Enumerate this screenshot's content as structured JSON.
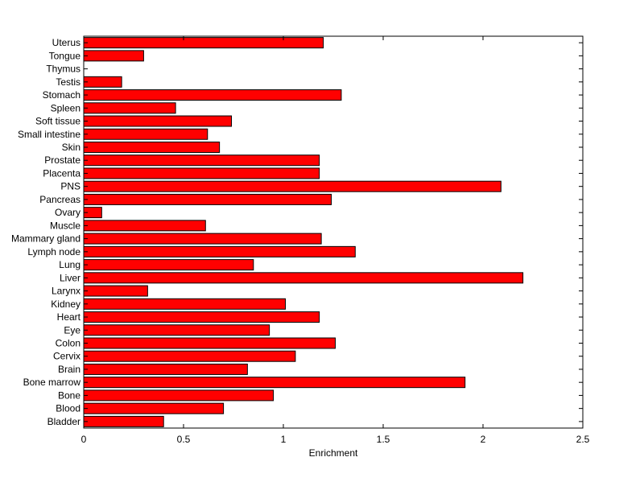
{
  "chart_data": {
    "type": "bar",
    "orientation": "horizontal",
    "xlabel": "Enrichment",
    "ylabel": "",
    "title": "",
    "xlim": [
      0,
      2.5
    ],
    "xticks": [
      "0",
      "0.5",
      "1",
      "1.5",
      "2",
      "2.5"
    ],
    "grid": false,
    "legend": "none",
    "bar_color": "#ff0000",
    "bar_edge_color": "#000000",
    "categories": [
      "Bladder",
      "Blood",
      "Bone",
      "Bone marrow",
      "Brain",
      "Cervix",
      "Colon",
      "Eye",
      "Heart",
      "Kidney",
      "Larynx",
      "Liver",
      "Lung",
      "Lymph node",
      "Mammary gland",
      "Muscle",
      "Ovary",
      "Pancreas",
      "PNS",
      "Placenta",
      "Prostate",
      "Skin",
      "Small intestine",
      "Soft tissue",
      "Spleen",
      "Stomach",
      "Testis",
      "Thymus",
      "Tongue",
      "Uterus"
    ],
    "values": [
      0.4,
      0.7,
      0.95,
      1.91,
      0.82,
      1.06,
      1.26,
      0.93,
      1.18,
      1.01,
      0.32,
      2.2,
      0.85,
      1.36,
      1.19,
      0.61,
      0.09,
      1.24,
      2.09,
      1.18,
      1.18,
      0.68,
      0.62,
      0.74,
      0.46,
      1.29,
      0.19,
      0,
      0.3,
      1.2
    ]
  }
}
